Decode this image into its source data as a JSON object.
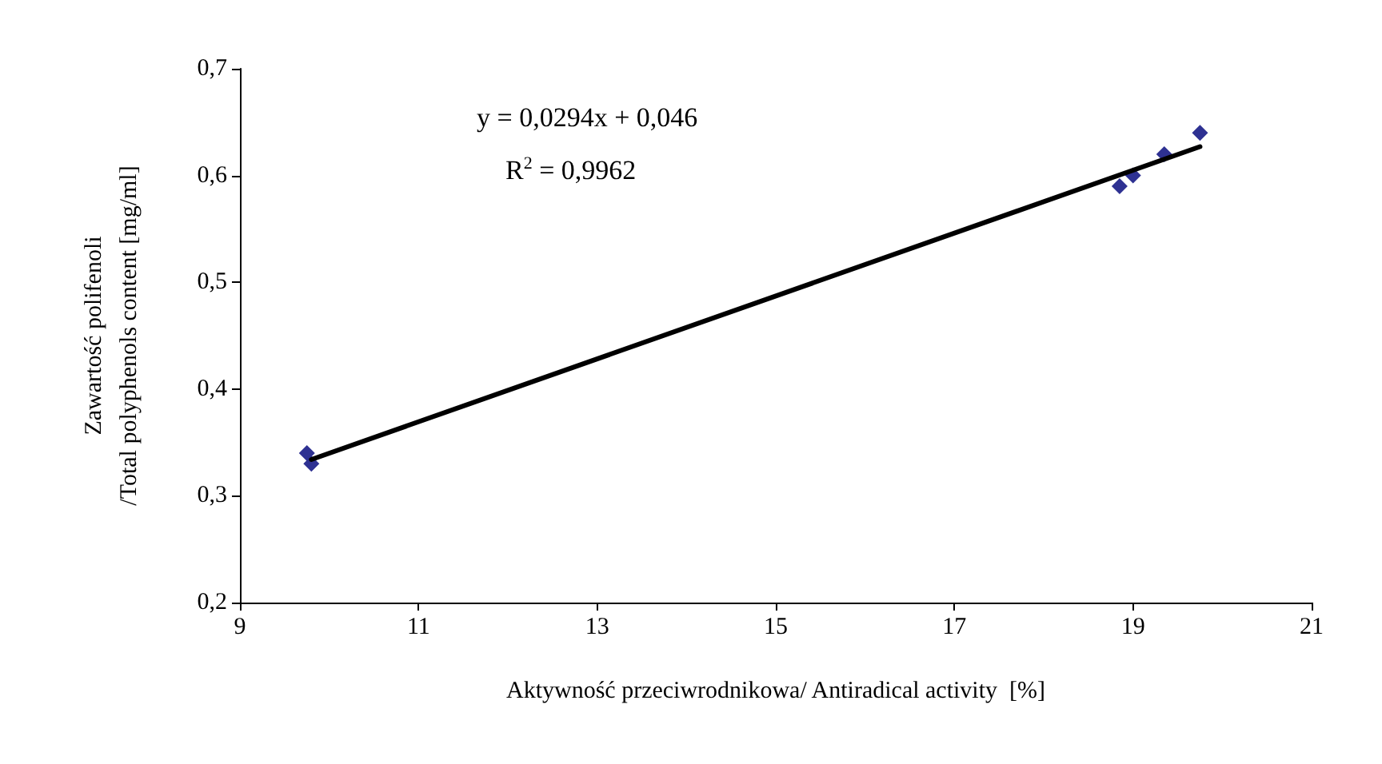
{
  "chart_data": {
    "type": "scatter",
    "xlabel": "Aktywność przeciwrodnikowa/ Antiradical activity  [%]",
    "ylabel": "Zawartość polifenoli\n/Total polyphenols content [mg/ml]",
    "annotations": [
      "y = 0,0294x + 0,046",
      "R$^{2}$ = 0,9962"
    ],
    "series": [
      {
        "color": "#2e3192",
        "marker": "diamond",
        "x": [
          9.75,
          9.8,
          18.85,
          19.0,
          19.35,
          19.75
        ],
        "values": [
          0.34,
          0.33,
          0.59,
          0.6,
          0.62,
          0.64
        ]
      },
      {
        "type": "line",
        "marker": "none",
        "color": "#000000",
        "x": [
          9.8,
          19.75
        ],
        "values": [
          0.334,
          0.627
        ]
      }
    ],
    "xlim": [
      9,
      21
    ],
    "xticks": [
      9,
      11,
      13,
      15,
      17,
      19,
      21
    ],
    "ylim": [
      0.2,
      0.7
    ],
    "yticks": [
      {
        "value": 0.2,
        "label": "0,2"
      },
      {
        "value": 0.3,
        "label": "0,3"
      },
      {
        "value": 0.4,
        "label": "0,4"
      },
      {
        "value": 0.5,
        "label": "0,5"
      },
      {
        "value": 0.6,
        "label": "0,6"
      },
      {
        "value": 0.7,
        "label": "0,7"
      }
    ],
    "grid": false
  }
}
